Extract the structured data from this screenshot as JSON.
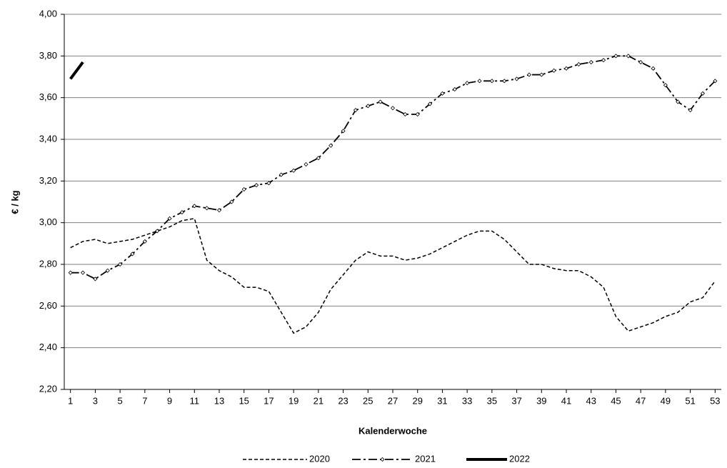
{
  "chart_data": {
    "type": "line",
    "x_label": "Kalenderwoche",
    "y_label": "€ / kg",
    "x": [
      1,
      2,
      3,
      4,
      5,
      6,
      7,
      8,
      9,
      10,
      11,
      12,
      13,
      14,
      15,
      16,
      17,
      18,
      19,
      20,
      21,
      22,
      23,
      24,
      25,
      26,
      27,
      28,
      29,
      30,
      31,
      32,
      33,
      34,
      35,
      36,
      37,
      38,
      39,
      40,
      41,
      42,
      43,
      44,
      45,
      46,
      47,
      48,
      49,
      50,
      51,
      52,
      53
    ],
    "xlim": [
      0.5,
      53.5
    ],
    "xticks": [
      1,
      3,
      5,
      7,
      9,
      11,
      13,
      15,
      17,
      19,
      21,
      23,
      25,
      27,
      29,
      31,
      33,
      35,
      37,
      39,
      41,
      43,
      45,
      47,
      49,
      51,
      53
    ],
    "ylim": [
      2.2,
      4.0
    ],
    "yticks": [
      {
        "value": 2.2,
        "label": "2,20"
      },
      {
        "value": 2.4,
        "label": "2,40"
      },
      {
        "value": 2.6,
        "label": "2,60"
      },
      {
        "value": 2.8,
        "label": "2,80"
      },
      {
        "value": 3.0,
        "label": "3,00"
      },
      {
        "value": 3.2,
        "label": "3,20"
      },
      {
        "value": 3.4,
        "label": "3,40"
      },
      {
        "value": 3.6,
        "label": "3,60"
      },
      {
        "value": 3.8,
        "label": "3,80"
      },
      {
        "value": 4.0,
        "label": "4,00"
      }
    ],
    "grid": true,
    "legend": "bottom",
    "series": [
      {
        "name": "2020",
        "color": "#000000",
        "line_style": "dashed",
        "values": [
          2.88,
          2.91,
          2.92,
          2.9,
          2.91,
          2.92,
          2.94,
          2.96,
          2.98,
          3.01,
          3.02,
          2.82,
          2.77,
          2.74,
          2.69,
          2.69,
          2.67,
          2.57,
          2.47,
          2.5,
          2.57,
          2.68,
          2.75,
          2.82,
          2.86,
          2.84,
          2.84,
          2.82,
          2.83,
          2.85,
          2.88,
          2.91,
          2.94,
          2.96,
          2.96,
          2.92,
          2.86,
          2.8,
          2.8,
          2.78,
          2.77,
          2.77,
          2.74,
          2.69,
          2.55,
          2.48,
          2.5,
          2.52,
          2.55,
          2.57,
          2.62,
          2.64,
          2.72
        ]
      },
      {
        "name": "2021",
        "color": "#000000",
        "line_style": "dash-dot",
        "marker": "diamond",
        "values": [
          2.76,
          2.76,
          2.73,
          2.77,
          2.8,
          2.85,
          2.91,
          2.96,
          3.02,
          3.05,
          3.08,
          3.07,
          3.06,
          3.1,
          3.16,
          3.18,
          3.19,
          3.23,
          3.25,
          3.28,
          3.31,
          3.37,
          3.44,
          3.54,
          3.56,
          3.58,
          3.55,
          3.52,
          3.52,
          3.57,
          3.62,
          3.64,
          3.67,
          3.68,
          3.68,
          3.68,
          3.69,
          3.71,
          3.71,
          3.73,
          3.74,
          3.76,
          3.77,
          3.78,
          3.8,
          3.8,
          3.77,
          3.74,
          3.66,
          3.58,
          3.54,
          3.62,
          3.68
        ]
      },
      {
        "name": "2022",
        "color": "#000000",
        "line_style": "solid",
        "values": [
          3.69,
          3.77,
          null,
          null,
          null,
          null,
          null,
          null,
          null,
          null,
          null,
          null,
          null,
          null,
          null,
          null,
          null,
          null,
          null,
          null,
          null,
          null,
          null,
          null,
          null,
          null,
          null,
          null,
          null,
          null,
          null,
          null,
          null,
          null,
          null,
          null,
          null,
          null,
          null,
          null,
          null,
          null,
          null,
          null,
          null,
          null,
          null,
          null,
          null,
          null,
          null,
          null,
          null
        ]
      }
    ]
  }
}
